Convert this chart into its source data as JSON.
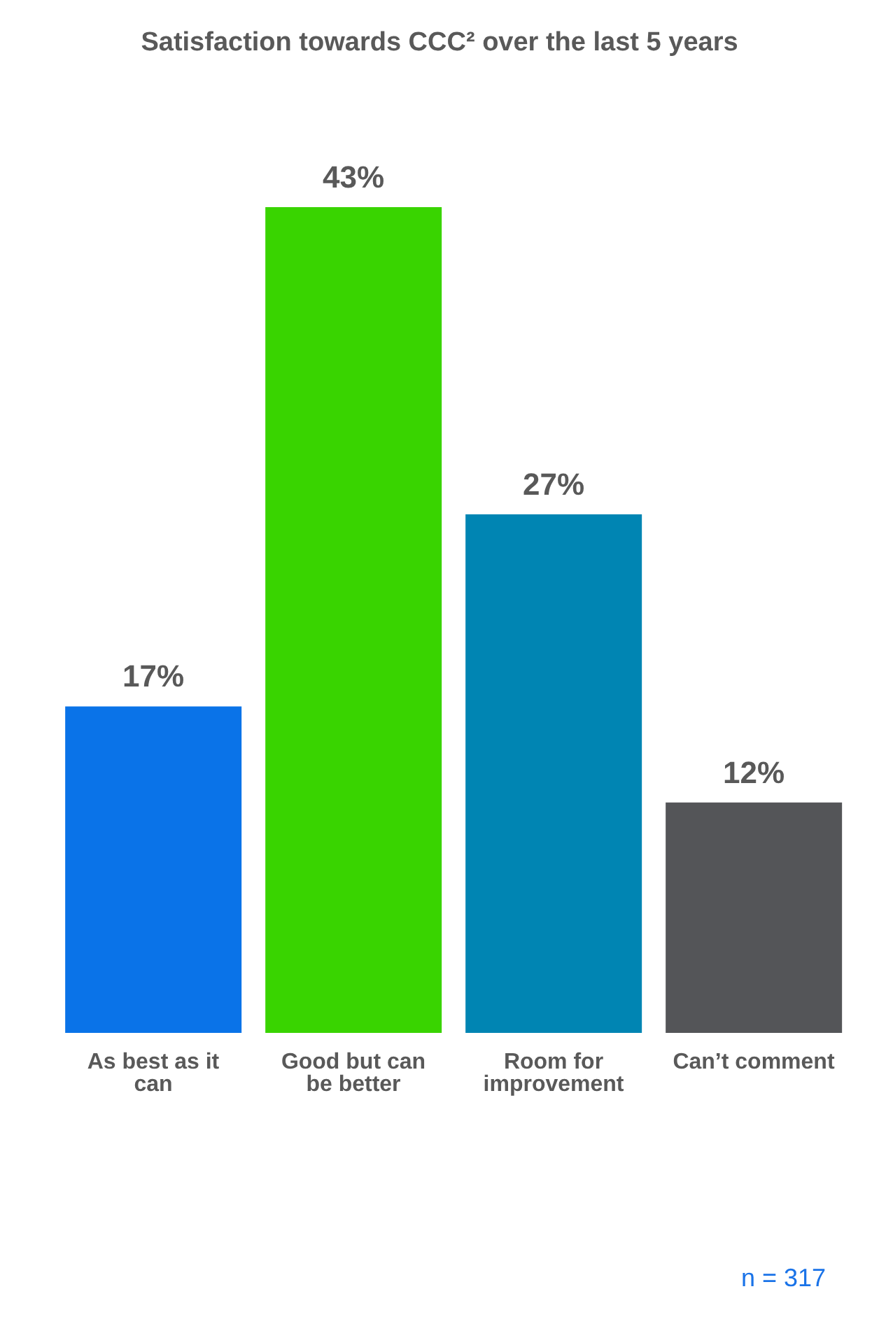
{
  "chart_data": {
    "type": "bar",
    "title": "Satisfaction towards CCC² over the last 5 years",
    "categories": [
      "As best as it can",
      "Good but can be better",
      "Room for improvement",
      "Can’t comment"
    ],
    "values": [
      17,
      43,
      27,
      12
    ],
    "colors": [
      "#0a73e8",
      "#39d400",
      "#0085b3",
      "#545558"
    ],
    "value_labels": [
      "17%",
      "43%",
      "27%",
      "12%"
    ],
    "annotations": [
      "n = 317"
    ],
    "grid": false,
    "legend": false
  }
}
